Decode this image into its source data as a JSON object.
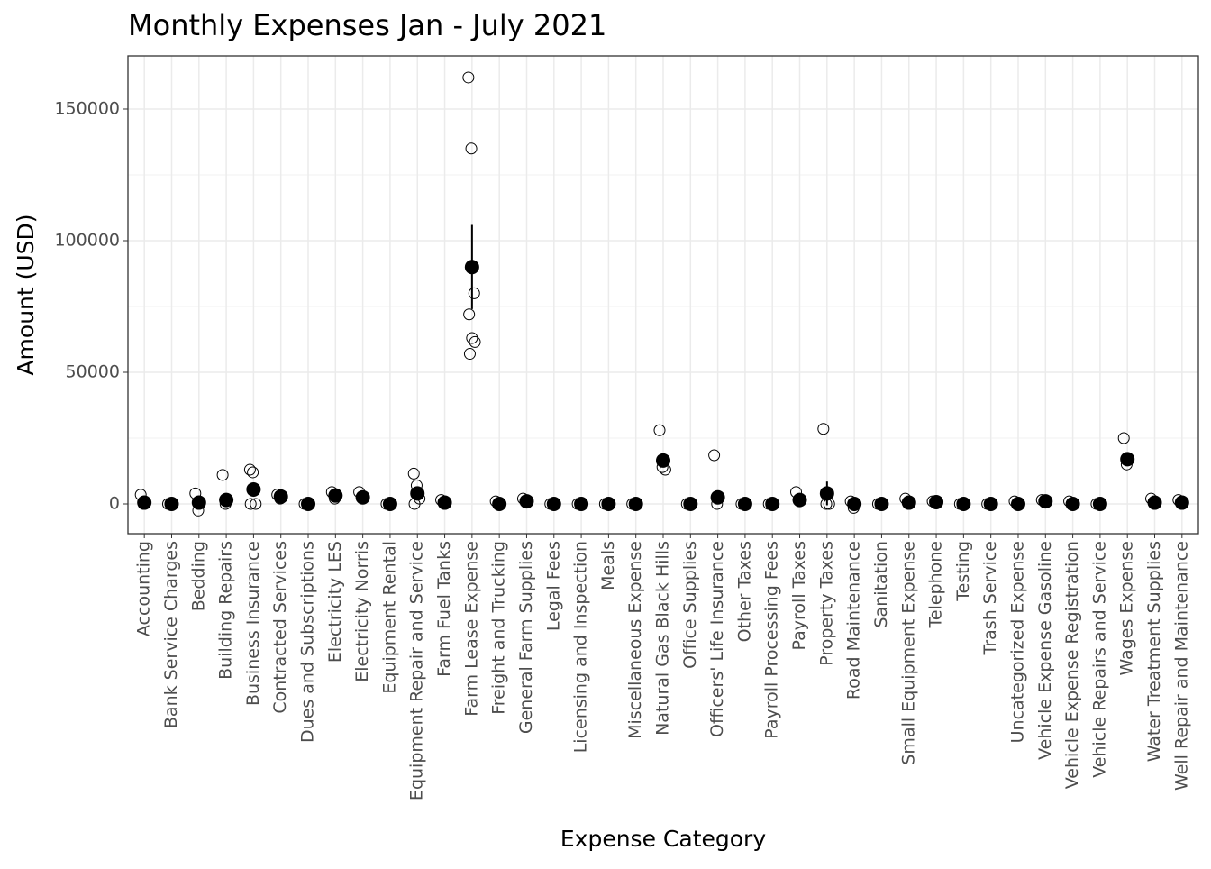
{
  "chart_data": {
    "type": "dot",
    "title": "Monthly Expenses Jan - July 2021",
    "x_label": "Expense Category",
    "y_label": "Amount (USD)",
    "categories": [
      "Accounting",
      "Bank Service Charges",
      "Bedding",
      "Building Repairs",
      "Business Insurance",
      "Contracted Services",
      "Dues and Subscriptions",
      "Electricity LES",
      "Electricity Norris",
      "Equipment Rental",
      "Equipment Repair and Service",
      "Farm Fuel Tanks",
      "Farm Lease Expense",
      "Freight and Trucking",
      "General Farm Supplies",
      "Legal Fees",
      "Licensing and Inspection",
      "Meals",
      "Miscellaneous Expense",
      "Natural Gas Black Hills",
      "Office Supplies",
      "Officers' Life Insurance",
      "Other Taxes",
      "Payroll Processing Fees",
      "Payroll Taxes",
      "Property Taxes",
      "Road Maintenance",
      "Sanitation",
      "Small Equipment Expense",
      "Telephone",
      "Testing",
      "Trash Service",
      "Uncategorized Expense",
      "Vehicle Expense Gasoline",
      "Vehicle Expense Registration",
      "Vehicle Repairs and Service",
      "Wages Expense",
      "Water Treatment Supplies",
      "Well Repair and Maintenance"
    ],
    "values": [
      500,
      0,
      500,
      1500,
      5500,
      2800,
      0,
      3200,
      2500,
      0,
      4000,
      500,
      90000,
      0,
      1000,
      0,
      0,
      0,
      0,
      16500,
      0,
      2500,
      0,
      0,
      1500,
      4000,
      0,
      0,
      500,
      700,
      0,
      0,
      0,
      1000,
      0,
      0,
      17000,
      500,
      500
    ],
    "error_low": [
      null,
      null,
      null,
      null,
      null,
      null,
      null,
      null,
      null,
      null,
      null,
      null,
      74000,
      null,
      null,
      null,
      null,
      null,
      null,
      null,
      null,
      null,
      null,
      null,
      null,
      -500,
      null,
      null,
      null,
      null,
      null,
      null,
      null,
      null,
      null,
      null,
      null,
      null,
      null
    ],
    "error_high": [
      null,
      null,
      null,
      null,
      null,
      null,
      null,
      null,
      null,
      null,
      null,
      null,
      106000,
      null,
      null,
      null,
      null,
      null,
      null,
      null,
      null,
      null,
      null,
      null,
      null,
      8500,
      null,
      null,
      null,
      null,
      null,
      null,
      null,
      null,
      null,
      null,
      null,
      null,
      null
    ],
    "observations": [
      [
        3500,
        0
      ],
      [
        0
      ],
      [
        4000,
        -2500
      ],
      [
        11000,
        0
      ],
      [
        13000,
        12000,
        0,
        0
      ],
      [
        3500,
        2000
      ],
      [
        0
      ],
      [
        4500,
        2000
      ],
      [
        4500
      ],
      [
        0
      ],
      [
        11500,
        7000,
        2000,
        0
      ],
      [
        1500
      ],
      [
        162000,
        135000,
        80000,
        72000,
        63000,
        61500,
        57000
      ],
      [
        1000
      ],
      [
        2000
      ],
      [
        0
      ],
      [
        0
      ],
      [
        0
      ],
      [
        0
      ],
      [
        28000,
        14000,
        13000
      ],
      [
        0
      ],
      [
        18500,
        0
      ],
      [
        0
      ],
      [
        0
      ],
      [
        4500
      ],
      [
        28500,
        0,
        0
      ],
      [
        1000,
        -1500
      ],
      [
        0
      ],
      [
        2000
      ],
      [
        1000
      ],
      [
        0
      ],
      [
        0
      ],
      [
        1000
      ],
      [
        1500
      ],
      [
        1000
      ],
      [
        0
      ],
      [
        25000,
        15000
      ],
      [
        2000
      ],
      [
        1500
      ]
    ],
    "ylim": [
      -11300,
      170200
    ],
    "yticks": [
      0,
      50000,
      100000,
      150000
    ],
    "minor_yticks": [
      25000,
      75000,
      125000
    ],
    "grid": true,
    "color": "#000000"
  }
}
